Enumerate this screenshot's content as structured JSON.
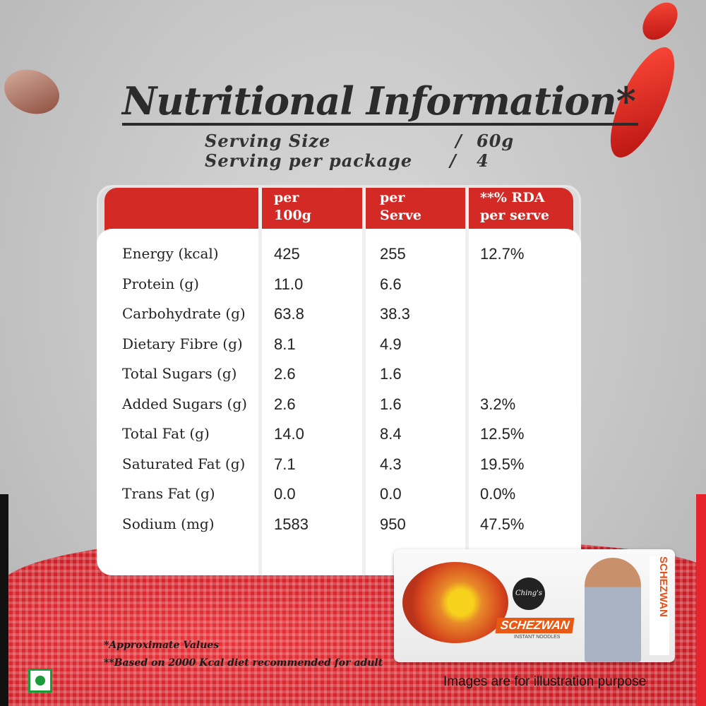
{
  "title": "Nutritional Information*",
  "serving": {
    "size_label": "Serving Size",
    "size_value": "60g",
    "per_package_label": "Serving per package",
    "per_package_value": "4",
    "separator": "/"
  },
  "table": {
    "headers": [
      "",
      "per\n100g",
      "per\nServe",
      "**% RDA\nper serve"
    ],
    "header_color": "#d42a26",
    "rows": [
      {
        "label": "Energy (kcal)",
        "per100": "425",
        "perServe": "255",
        "rda": "12.7%"
      },
      {
        "label": "Protein (g)",
        "per100": "11.0",
        "perServe": "6.6",
        "rda": ""
      },
      {
        "label": "Carbohydrate (g)",
        "per100": "63.8",
        "perServe": "38.3",
        "rda": ""
      },
      {
        "label": "Dietary Fibre (g)",
        "per100": "8.1",
        "perServe": "4.9",
        "rda": ""
      },
      {
        "label": "Total Sugars (g)",
        "per100": "2.6",
        "perServe": "1.6",
        "rda": ""
      },
      {
        "label": "Added Sugars (g)",
        "per100": "2.6",
        "perServe": "1.6",
        "rda": "3.2%"
      },
      {
        "label": "Total Fat (g)",
        "per100": "14.0",
        "perServe": "8.4",
        "rda": "12.5%"
      },
      {
        "label": "Saturated Fat (g)",
        "per100": "7.1",
        "perServe": "4.3",
        "rda": "19.5%"
      },
      {
        "label": "Trans Fat (g)",
        "per100": "0.0",
        "perServe": "0.0",
        "rda": "0.0%"
      },
      {
        "label": "Sodium (mg)",
        "per100": "1583",
        "perServe": "950",
        "rda": "47.5%"
      }
    ]
  },
  "notes": [
    "*Approximate Values",
    "**Based on 2000 Kcal diet recommended for adult"
  ],
  "disclaimer": "Images are for illustration purpose",
  "package": {
    "brand": "Ching's",
    "variant": "SCHEZWAN",
    "subtitle": "INSTANT NOODLES"
  },
  "veg_mark_color": "#1a9b3a"
}
